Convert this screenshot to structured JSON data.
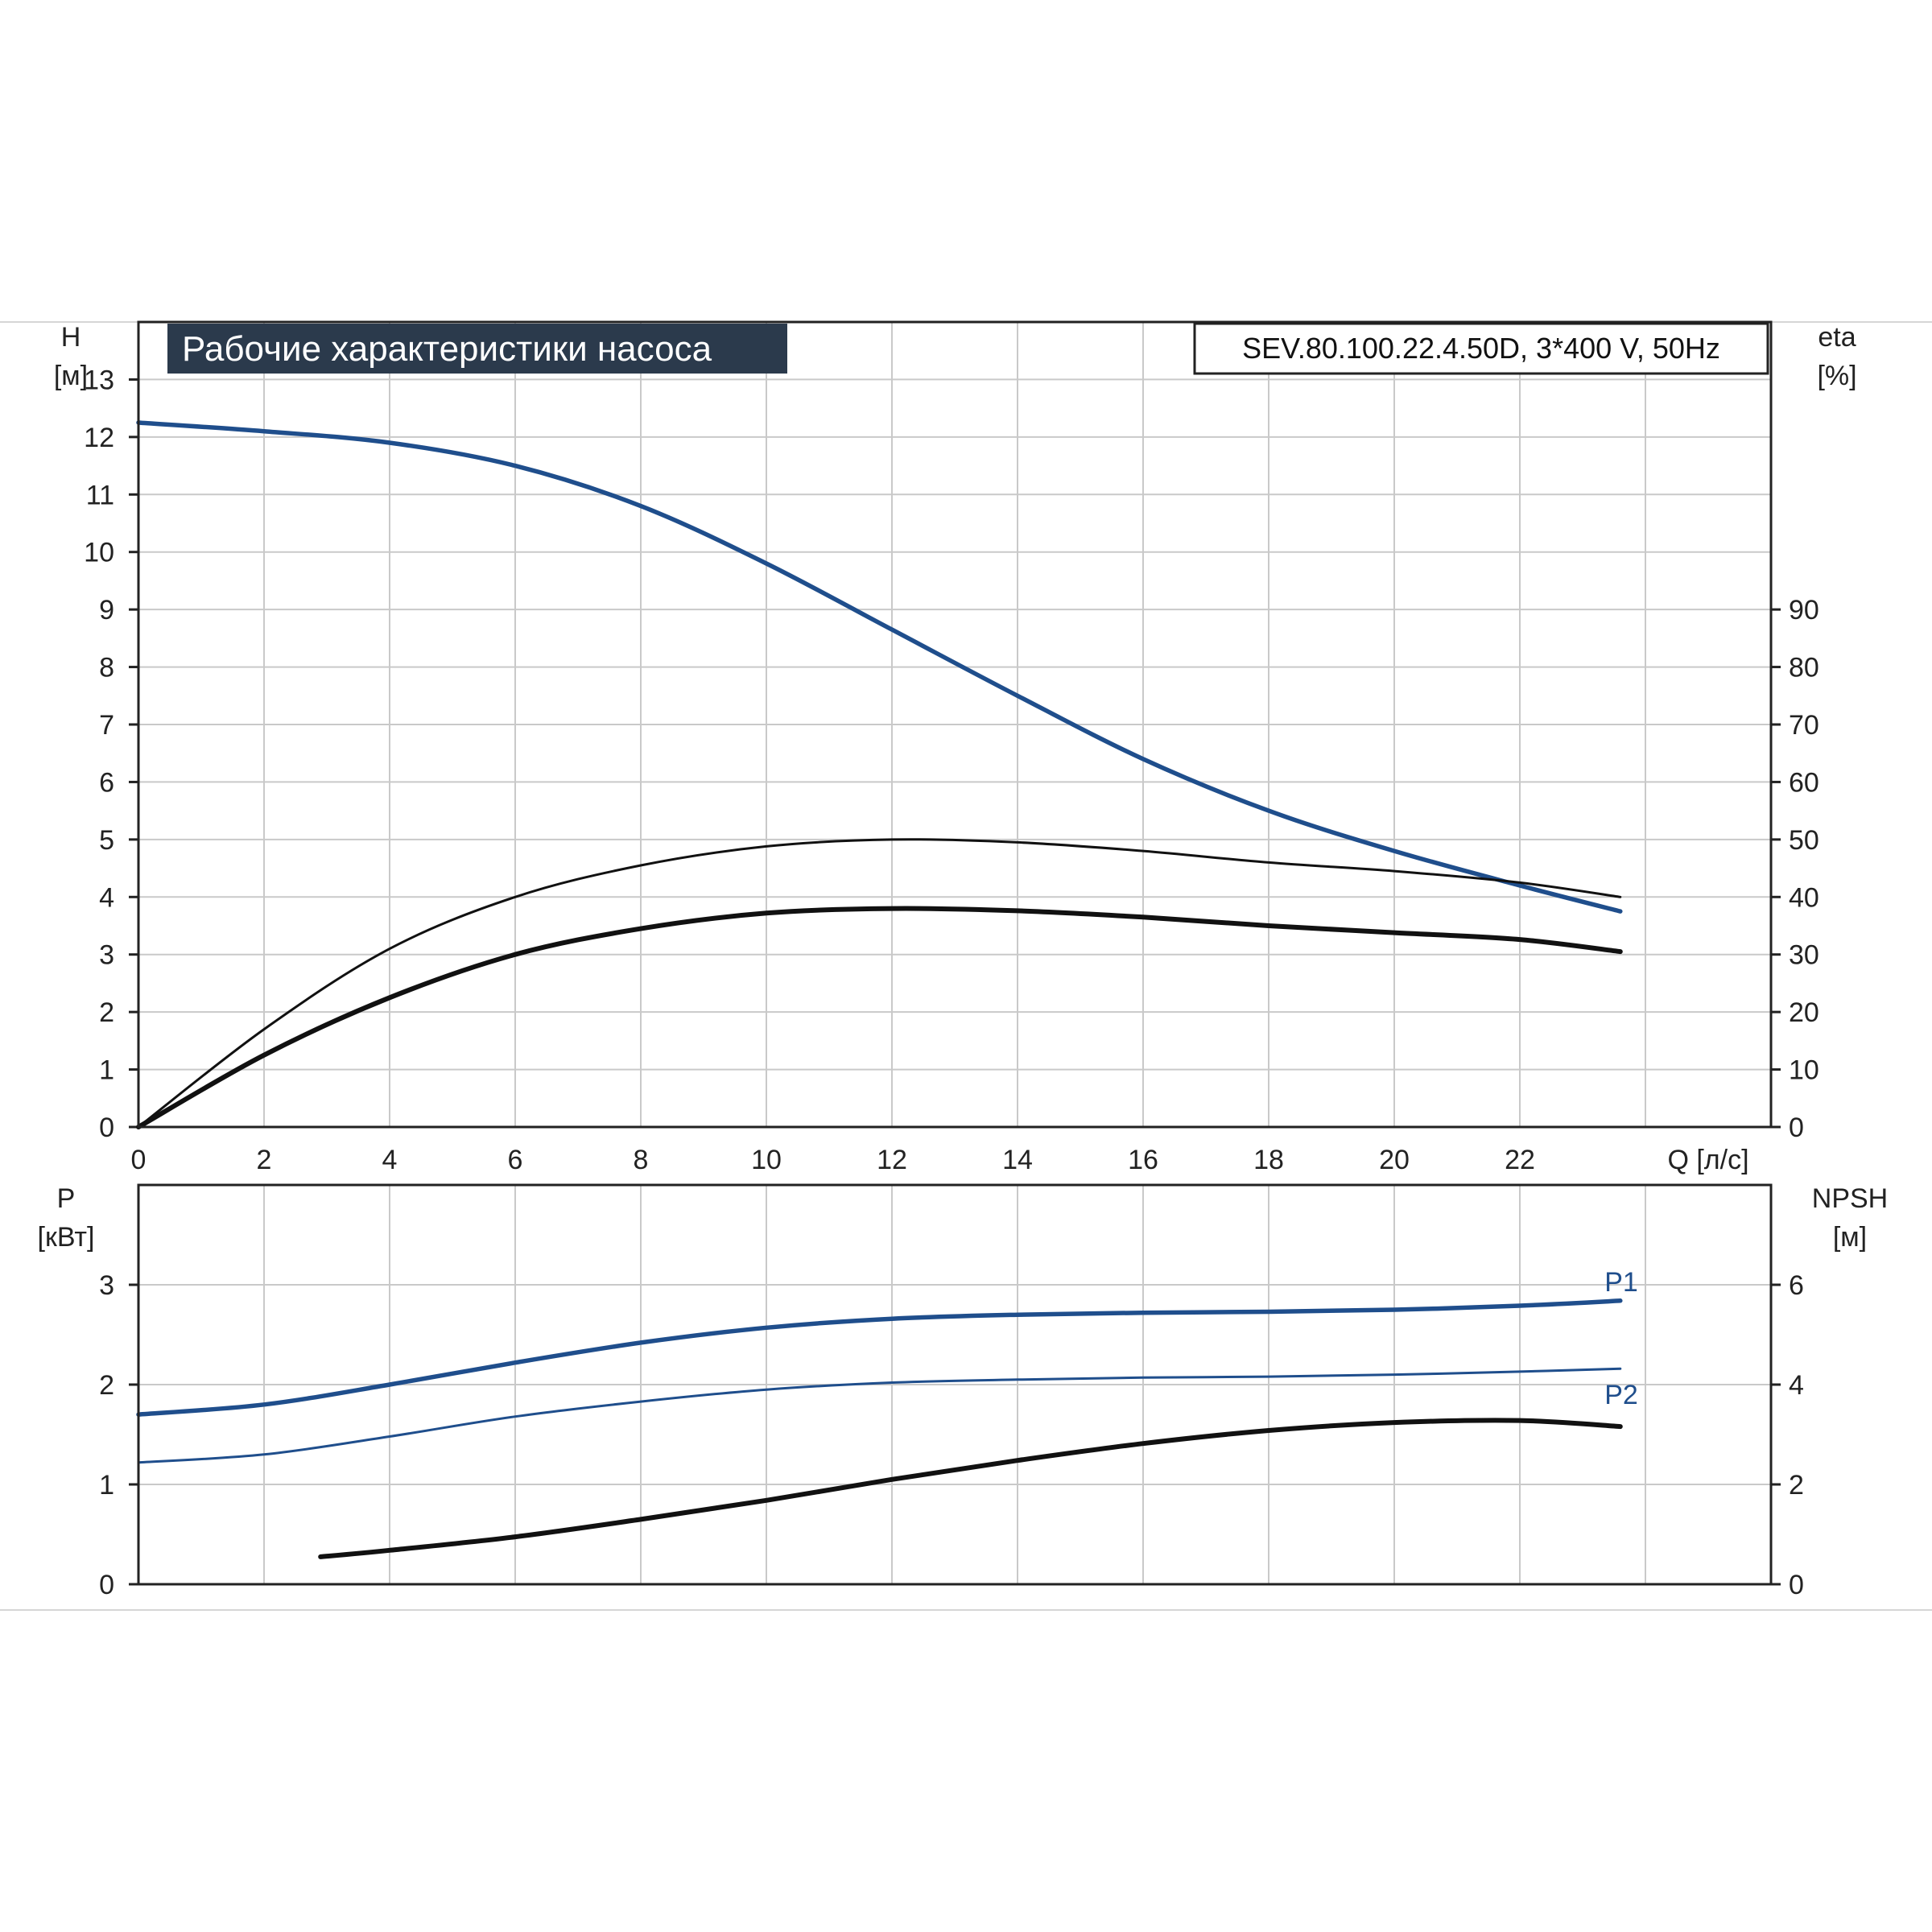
{
  "colors": {
    "blue": "#1f4e8c",
    "black": "#111111",
    "grid": "#c9c9c9",
    "title_bg": "#2b3a4c",
    "title_text": "#ffffff"
  },
  "chart_data": [
    {
      "type": "line",
      "title": "Рабочие характеристики насоса",
      "model": "SEV.80.100.22.4.50D, 3*400 V, 50Hz",
      "ylabel_left": "H",
      "ylabel_left_unit": "[м]",
      "ylabel_right": "eta",
      "ylabel_right_unit": "[%]",
      "xlabel": "Q [л/с]",
      "xlim": [
        0,
        26
      ],
      "ylim_left": [
        0,
        14
      ],
      "ylim_right": [
        0,
        140
      ],
      "x_ticks": [
        0,
        2,
        4,
        6,
        8,
        10,
        12,
        14,
        16,
        18,
        20,
        22
      ],
      "y_ticks_left": [
        0,
        1,
        2,
        3,
        4,
        5,
        6,
        7,
        8,
        9,
        10,
        11,
        12,
        13
      ],
      "y_ticks_right": [
        0,
        10,
        20,
        30,
        40,
        50,
        60,
        70,
        80,
        90
      ],
      "grid": true,
      "series": [
        {
          "axis": "left",
          "color": "blue",
          "width": 5.5,
          "x": [
            0,
            2,
            4,
            6,
            8,
            10,
            12,
            14,
            16,
            18,
            20,
            22,
            23.6
          ],
          "y": [
            12.25,
            12.1,
            11.9,
            11.5,
            10.8,
            9.8,
            8.65,
            7.5,
            6.4,
            5.5,
            4.8,
            4.2,
            3.75
          ]
        },
        {
          "axis": "right",
          "color": "black",
          "width": 3,
          "x": [
            0,
            2,
            4,
            6,
            8,
            10,
            12,
            14,
            16,
            18,
            20,
            22,
            23.6
          ],
          "y": [
            0,
            17,
            31,
            40,
            45.5,
            48.8,
            50,
            49.5,
            48,
            46,
            44.5,
            42.5,
            40
          ]
        },
        {
          "axis": "right",
          "color": "black",
          "width": 6,
          "x": [
            0,
            2,
            4,
            6,
            8,
            10,
            12,
            14,
            16,
            18,
            20,
            22,
            23.6
          ],
          "y": [
            0,
            12.5,
            22.5,
            30,
            34.5,
            37.2,
            38,
            37.6,
            36.5,
            35,
            33.8,
            32.6,
            30.5
          ]
        }
      ]
    },
    {
      "type": "line",
      "ylabel_left": "P",
      "ylabel_left_unit": "[кВт]",
      "ylabel_right": "NPSH",
      "ylabel_right_unit": "[м]",
      "xlim": [
        0,
        26
      ],
      "ylim_left": [
        0,
        4
      ],
      "ylim_right": [
        0,
        8
      ],
      "x_ticks": [
        0,
        2,
        4,
        6,
        8,
        10,
        12,
        14,
        16,
        18,
        20,
        22
      ],
      "y_ticks_left": [
        0,
        1,
        2,
        3
      ],
      "y_ticks_right": [
        0,
        2,
        4,
        6
      ],
      "grid": true,
      "series": [
        {
          "name": "P1",
          "axis": "left",
          "color": "blue",
          "width": 5.5,
          "x": [
            0,
            2,
            4,
            6,
            8,
            10,
            12,
            14,
            16,
            18,
            20,
            22,
            23.6
          ],
          "y": [
            1.7,
            1.8,
            2.0,
            2.22,
            2.42,
            2.57,
            2.66,
            2.7,
            2.72,
            2.73,
            2.75,
            2.79,
            2.84
          ]
        },
        {
          "name": "P2",
          "axis": "left",
          "color": "blue",
          "width": 3,
          "x": [
            0,
            2,
            4,
            6,
            8,
            10,
            12,
            14,
            16,
            18,
            20,
            22,
            23.6
          ],
          "y": [
            1.22,
            1.3,
            1.48,
            1.68,
            1.83,
            1.95,
            2.02,
            2.05,
            2.07,
            2.08,
            2.1,
            2.13,
            2.16
          ]
        },
        {
          "axis": "right",
          "color": "black",
          "width": 6,
          "x": [
            2.9,
            4,
            6,
            8,
            10,
            12,
            14,
            16,
            18,
            20,
            22,
            23.6
          ],
          "y": [
            0.55,
            0.68,
            0.95,
            1.3,
            1.68,
            2.1,
            2.48,
            2.82,
            3.08,
            3.24,
            3.28,
            3.16
          ]
        }
      ]
    }
  ]
}
